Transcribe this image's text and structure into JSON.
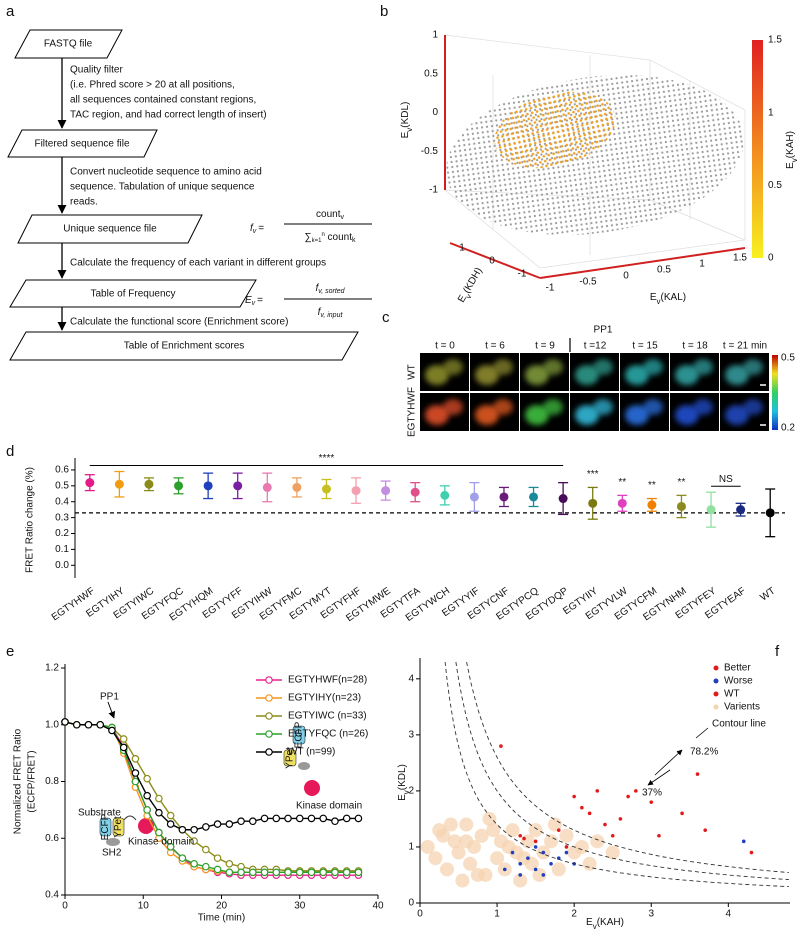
{
  "panels": [
    "a",
    "b",
    "c",
    "d",
    "e",
    "f"
  ],
  "flowchart": {
    "nodes": [
      "FASTQ file",
      "Filtered sequence file",
      "Unique sequence file",
      "Table of Frequency",
      "Table of Enrichment scores"
    ],
    "steps": [
      [
        "Quality filter",
        "(i.e. Phred score > 20 at all positions,",
        "all sequences contained constant regions,",
        "TAC region, and had correct length of insert)"
      ],
      [
        "Convert nucleotide sequence to amino acid",
        "sequence. Tabulation of unique sequence",
        " reads."
      ],
      [
        "Calculate the frequency of each variant in different groups"
      ],
      [
        "Calculate the functional score (Enrichment score)"
      ]
    ],
    "formulas": [
      {
        "lhs": "f",
        "lhs_sub": "v",
        "eq": "=",
        "num": "count",
        "num_sub": "v",
        "sum": "∑",
        "sum_sub": "k=1",
        "sum_sup": "n",
        "den": " count",
        "den_sub": "k"
      },
      {
        "lhs": "E",
        "lhs_sub": "v",
        "eq": "=",
        "num": "f",
        "num_sub": "v, sorted",
        "den": "f",
        "den_sub": "v, input"
      }
    ]
  },
  "scatter3d": {
    "z_label": {
      "text": "E",
      "sub": "v",
      "suffix": "(KDL)"
    },
    "y_label": {
      "text": "E",
      "sub": "v",
      "suffix": "(KDH)"
    },
    "x_label": {
      "text": "E",
      "sub": "v",
      "suffix": "(KAL)"
    },
    "color_label": {
      "text": "E",
      "sub": "v",
      "suffix": "(KAH)"
    },
    "z_ticks": [
      1,
      0.5,
      0,
      -0.5,
      -1
    ],
    "y_ticks": [
      1,
      0,
      -1
    ],
    "x_ticks": [
      -1,
      -0.5,
      0,
      0.5,
      1,
      1.5
    ],
    "color_ticks": [
      1.5,
      1,
      0.5,
      0
    ]
  },
  "microscopy": {
    "event": "PP1",
    "times": [
      "t = 0",
      "t = 6",
      "t = 9",
      "t =12",
      "t = 15",
      "t = 18",
      "t = 21 min"
    ],
    "rows": [
      "WT",
      "EGTYHWF"
    ],
    "scale_ticks": [
      0.5,
      0.2
    ]
  },
  "chart_data": [
    {
      "type": "dot",
      "ylabel": "FRET Ratio change (%)",
      "categories": [
        "EGTYHWF",
        "EGTYIHY",
        "EGTYIWC",
        "EGTYFQC",
        "EGTYHQM",
        "EGTYYFF",
        "EGTYIHW",
        "EGTYFMC",
        "EGTYMYT",
        "EGTYFHF",
        "EGTYMWE",
        "EGTYTFA",
        "EGTYWCH",
        "EGTYYIF",
        "EGTYCNF",
        "EGTYPCQ",
        "EGTYDQP",
        "EGTYIIY",
        "EGTYVLW",
        "EGTYCFM",
        "EGTYNHM",
        "EGTYFEY",
        "EGTYEAF",
        "WT"
      ],
      "values": [
        0.52,
        0.51,
        0.51,
        0.5,
        0.5,
        0.5,
        0.49,
        0.49,
        0.48,
        0.47,
        0.47,
        0.46,
        0.44,
        0.43,
        0.43,
        0.43,
        0.42,
        0.39,
        0.39,
        0.38,
        0.37,
        0.35,
        0.35,
        0.33
      ],
      "errors": [
        0.05,
        0.08,
        0.04,
        0.05,
        0.08,
        0.08,
        0.09,
        0.06,
        0.06,
        0.08,
        0.06,
        0.06,
        0.06,
        0.09,
        0.06,
        0.06,
        0.1,
        0.1,
        0.05,
        0.04,
        0.07,
        0.11,
        0.04,
        0.15
      ],
      "colors": [
        "#e6198a",
        "#f39c12",
        "#8b8b1a",
        "#2ca02c",
        "#1f3fbf",
        "#7b1fa2",
        "#e87ab0",
        "#f0a060",
        "#c8c020",
        "#f4a0b0",
        "#c48ee0",
        "#e0508a",
        "#40d0b0",
        "#a0a0e8",
        "#6a1b7a",
        "#1a8a9a",
        "#4a0a5a",
        "#7a7a10",
        "#e040c0",
        "#f08000",
        "#8a8a20",
        "#90e0a0",
        "#1a2a80",
        "#000000"
      ],
      "reference": "WT",
      "ylim": [
        -0.08,
        0.65
      ],
      "yticks": [
        {
          "value": 0,
          "label": "0.0"
        },
        0.1,
        0.2,
        0.3,
        0.4,
        0.5,
        0.6
      ],
      "grid": false,
      "annotations": [
        {
          "text": "****",
          "from": "EGTYHWF",
          "to": "EGTYDQP"
        },
        {
          "text": "***",
          "from": "EGTYIIY"
        },
        {
          "text": "**",
          "from": "EGTYVLW"
        },
        {
          "text": "**",
          "from": "EGTYCFM"
        },
        {
          "text": "**",
          "from": "EGTYNHM"
        },
        {
          "text": "NS",
          "from": "EGTYFEY",
          "to": "EGTYEAF"
        }
      ]
    },
    {
      "type": "line",
      "xlabel": "Time (min)",
      "ylabel": [
        "Normalized FRET Ratio",
        "(ECFP/FRET)"
      ],
      "x": [
        0,
        1.5,
        3,
        4.5,
        6,
        7.5,
        9,
        10.5,
        12,
        13.5,
        15,
        16.5,
        18,
        19.5,
        21,
        22.5,
        24,
        25.5,
        27,
        28.5,
        30,
        31.5,
        33,
        34.5,
        36,
        37.5
      ],
      "series": [
        {
          "name": "EGTYHWF(n=28)",
          "color": "#e8228c",
          "values": [
            1.01,
            1.0,
            1.0,
            1.0,
            0.99,
            0.92,
            0.8,
            0.7,
            0.62,
            0.57,
            0.53,
            0.5,
            0.49,
            0.48,
            0.475,
            0.47,
            0.47,
            0.47,
            0.47,
            0.47,
            0.47,
            0.47,
            0.47,
            0.47,
            0.47,
            0.47
          ]
        },
        {
          "name": "EGTYIHY(n=23)",
          "color": "#f7941d",
          "values": [
            1.01,
            1.0,
            1.0,
            1.0,
            0.99,
            0.9,
            0.78,
            0.68,
            0.6,
            0.55,
            0.52,
            0.5,
            0.49,
            0.485,
            0.48,
            0.48,
            0.48,
            0.48,
            0.48,
            0.48,
            0.48,
            0.48,
            0.48,
            0.48,
            0.48,
            0.48
          ]
        },
        {
          "name": "EGTYIWC (n=33)",
          "color": "#8c8c1a",
          "values": [
            1.01,
            1.0,
            1.0,
            1.0,
            0.99,
            0.95,
            0.88,
            0.81,
            0.74,
            0.68,
            0.63,
            0.59,
            0.56,
            0.53,
            0.51,
            0.5,
            0.49,
            0.49,
            0.49,
            0.485,
            0.485,
            0.485,
            0.485,
            0.485,
            0.485,
            0.485
          ]
        },
        {
          "name": "EGTYFQC (n=26)",
          "color": "#2ca02c",
          "values": [
            1.01,
            1.0,
            1.0,
            1.0,
            0.99,
            0.91,
            0.8,
            0.7,
            0.62,
            0.57,
            0.53,
            0.51,
            0.5,
            0.49,
            0.48,
            0.48,
            0.48,
            0.48,
            0.48,
            0.48,
            0.48,
            0.48,
            0.48,
            0.48,
            0.48,
            0.48
          ]
        },
        {
          "name": "WT (n=99)",
          "color": "#000000",
          "values": [
            1.01,
            1.0,
            1.0,
            1.0,
            0.98,
            0.92,
            0.83,
            0.75,
            0.69,
            0.65,
            0.63,
            0.63,
            0.64,
            0.65,
            0.65,
            0.66,
            0.66,
            0.67,
            0.67,
            0.67,
            0.67,
            0.67,
            0.67,
            0.66,
            0.67,
            0.67
          ]
        }
      ],
      "xlim": [
        0,
        40
      ],
      "xticks": [
        0,
        10,
        20,
        30,
        40
      ],
      "ylim": [
        0.4,
        1.2
      ],
      "yticks": [
        0.4,
        0.6,
        0.8,
        {
          "value": 1,
          "label": "1.0"
        },
        1.2
      ],
      "grid": false,
      "annotations": [
        "PP1",
        "Substrate",
        "SH2",
        "Kinase domain",
        "Kinase domain"
      ],
      "icon_labels": [
        "ECFP",
        "YPet",
        "ECFP",
        "YPet"
      ]
    },
    {
      "type": "scatter",
      "xlabel": {
        "text": "E",
        "sub": "v",
        "suffix": "(KAH)"
      },
      "ylabel": {
        "text": "E",
        "sub": "v",
        "suffix": "(KDL)"
      },
      "series": [
        {
          "name": "Better",
          "color": "#e31a1c",
          "x": [
            1.05,
            1.3,
            1.5,
            1.8,
            2.0,
            2.1,
            2.2,
            2.3,
            2.5,
            2.6,
            2.8,
            3.0,
            3.1,
            3.4,
            3.6,
            3.7,
            4.3,
            2.7,
            1.9,
            2.4
          ],
          "values": [
            2.8,
            1.2,
            1.1,
            1.3,
            1.9,
            1.7,
            1.6,
            2.0,
            1.2,
            1.5,
            2.0,
            1.8,
            1.2,
            1.6,
            2.3,
            1.3,
            0.9,
            1.9,
            1.0,
            1.4
          ]
        },
        {
          "name": "Worse",
          "color": "#1f3fbf",
          "x": [
            1.2,
            1.3,
            1.4,
            1.5,
            1.6,
            1.7,
            1.8,
            1.5,
            1.9,
            2.0,
            1.6,
            4.2,
            1.3,
            1.1
          ],
          "values": [
            0.9,
            0.7,
            0.8,
            0.6,
            0.9,
            0.7,
            0.8,
            1.0,
            0.9,
            0.7,
            0.5,
            1.1,
            0.5,
            0.6
          ]
        },
        {
          "name": "WT",
          "color": "#e31a1c",
          "x": [
            1.35
          ],
          "values": [
            1.15
          ]
        },
        {
          "name": "Varients",
          "color": "#f5d3b0",
          "x": [
            0.1,
            0.2,
            0.3,
            0.35,
            0.45,
            0.5,
            0.6,
            0.65,
            0.7,
            0.8,
            0.85,
            0.9,
            1.0,
            1.05,
            1.1,
            1.2,
            1.25,
            1.3,
            1.4,
            1.45,
            1.5,
            1.6,
            1.7,
            1.8,
            1.9,
            2.0,
            2.1,
            2.2,
            2.3,
            2.5,
            0.4,
            0.55,
            0.75,
            0.95,
            1.15,
            1.35,
            1.55,
            1.75,
            0.25,
            0.6
          ],
          "values": [
            1.0,
            0.8,
            1.2,
            0.6,
            1.1,
            0.9,
            1.4,
            0.7,
            1.0,
            1.2,
            0.5,
            1.5,
            0.8,
            1.1,
            0.6,
            1.3,
            0.9,
            0.4,
            1.1,
            0.7,
            1.3,
            0.9,
            1.1,
            0.6,
            1.2,
            0.9,
            1.0,
            0.7,
            1.1,
            0.9,
            1.4,
            0.4,
            0.5,
            1.3,
            1.0,
            0.8,
            0.5,
            1.4,
            1.3,
            1.1
          ]
        }
      ],
      "contour_levels": [
        1.4,
        2,
        2.6
      ],
      "xlim": [
        0,
        4.8
      ],
      "xticks": [
        0,
        1,
        2,
        3,
        4
      ],
      "ylim": [
        0,
        4.3
      ],
      "yticks": [
        0,
        1,
        2,
        3,
        4
      ],
      "grid": false,
      "legend": "top-right",
      "annotations": [
        "Contour line",
        "78.2%",
        "37%"
      ]
    }
  ]
}
